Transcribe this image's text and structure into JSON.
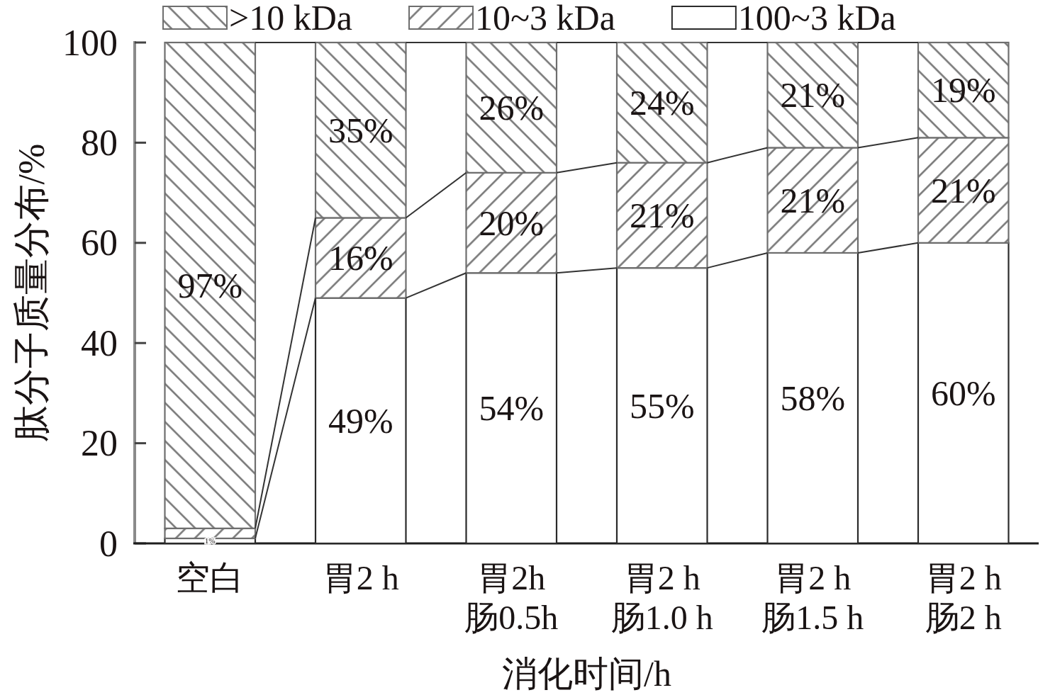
{
  "chart_data": {
    "type": "bar",
    "stacked": true,
    "legend": "top",
    "xlabel": "消化时间/h",
    "ylabel": "肽分子质量分布/%",
    "categories": [
      "空白",
      "胃2 h",
      "胃2h\n肠0.5h",
      "胃2 h\n肠1.0 h",
      "胃2 h\n肠1.5 h",
      "胃2 h\n肠2 h"
    ],
    "ylim": [
      0,
      100
    ],
    "yticks": [
      0,
      20,
      40,
      60,
      80,
      100
    ],
    "series": [
      {
        "name": "100~3 kDa",
        "color": "#ffffff",
        "values": [
          1,
          49,
          54,
          55,
          58,
          60
        ],
        "value_labels": [
          "1%",
          "49%",
          "54%",
          "55%",
          "58%",
          "60%"
        ]
      },
      {
        "name": "10~3 kDa",
        "color": "#6e6e6e",
        "values": [
          2,
          16,
          20,
          21,
          21,
          21
        ],
        "value_labels": [
          null,
          "16%",
          "20%",
          "21%",
          "21%",
          "21%"
        ]
      },
      {
        "name": ">10 kDa",
        "color": "#6e6e6e",
        "values": [
          97,
          35,
          26,
          24,
          21,
          19
        ],
        "value_labels": [
          "97%",
          "35%",
          "26%",
          "24%",
          "21%",
          "19%"
        ]
      }
    ]
  }
}
